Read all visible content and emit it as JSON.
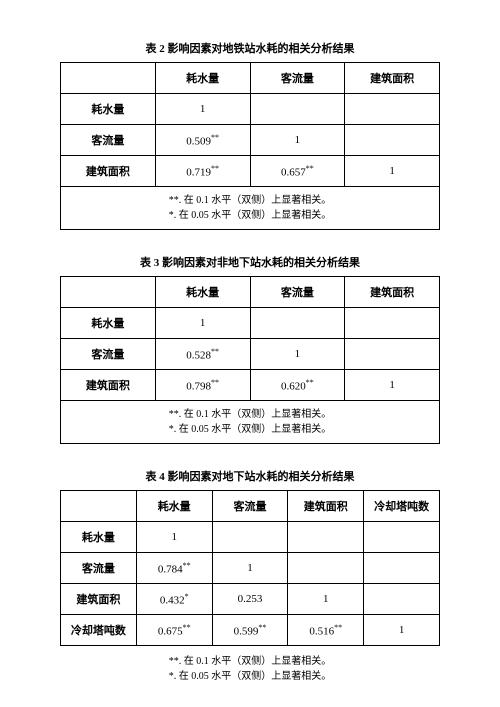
{
  "table2": {
    "title": "表 2  影响因素对地铁站水耗的相关分析结果",
    "headers": [
      "",
      "耗水量",
      "客流量",
      "建筑面积"
    ],
    "rows": [
      {
        "label": "耗水量",
        "cells": [
          "1",
          "",
          ""
        ]
      },
      {
        "label": "客流量",
        "cells": [
          "0.509**",
          "1",
          ""
        ]
      },
      {
        "label": "建筑面积",
        "cells": [
          "0.719**",
          "0.657**",
          "1"
        ]
      }
    ],
    "footnote1": "**. 在 0.1 水平（双侧）上显著相关。",
    "footnote2": "*. 在 0.05 水平（双侧）上显著相关。"
  },
  "table3": {
    "title": "表 3  影响因素对非地下站水耗的相关分析结果",
    "headers": [
      "",
      "耗水量",
      "客流量",
      "建筑面积"
    ],
    "rows": [
      {
        "label": "耗水量",
        "cells": [
          "1",
          "",
          ""
        ]
      },
      {
        "label": "客流量",
        "cells": [
          "0.528**",
          "1",
          ""
        ]
      },
      {
        "label": "建筑面积",
        "cells": [
          "0.798**",
          "0.620**",
          "1"
        ]
      }
    ],
    "footnote1": "**. 在 0.1 水平（双侧）上显著相关。",
    "footnote2": "*. 在 0.05 水平（双侧）上显著相关。"
  },
  "table4": {
    "title": "表 4  影响因素对地下站水耗的相关分析结果",
    "headers": [
      "",
      "耗水量",
      "客流量",
      "建筑面积",
      "冷却塔吨数"
    ],
    "rows": [
      {
        "label": "耗水量",
        "cells": [
          "1",
          "",
          "",
          ""
        ]
      },
      {
        "label": "客流量",
        "cells": [
          "0.784**",
          "1",
          "",
          ""
        ]
      },
      {
        "label": "建筑面积",
        "cells": [
          "0.432*",
          "0.253",
          "1",
          ""
        ]
      },
      {
        "label": "冷却塔吨数",
        "cells": [
          "0.675**",
          "0.599**",
          "0.516**",
          "1"
        ]
      }
    ],
    "footnote1": "**. 在 0.1 水平（双侧）上显著相关。",
    "footnote2": "*. 在 0.05 水平（双侧）上显著相关。"
  }
}
